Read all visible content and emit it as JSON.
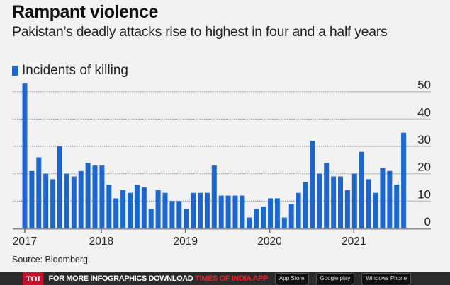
{
  "header": {
    "title": "Rampant violence",
    "subtitle": "Pakistan’s deadly attacks rise to highest in four and a half years"
  },
  "source": "Source: Bloomberg",
  "footer": {
    "logo": "TOI",
    "cta": "FOR MORE  INFOGRAPHICS DOWNLOAD",
    "cta_highlight": "TIMES OF INDIA  APP",
    "badges": [
      "App Store",
      "Google play",
      "Windows Phone"
    ]
  },
  "chart_data": {
    "type": "bar",
    "title": "Rampant violence",
    "legend": [
      "Incidents of killing"
    ],
    "legend_position": "top-left",
    "color": "#1a66d4",
    "x_start": "2017-01",
    "x_end": "2021-07",
    "x_unit": "month",
    "values": [
      53,
      21,
      26,
      20,
      18,
      30,
      20,
      19,
      21,
      24,
      23,
      23,
      16,
      11,
      14,
      13,
      16,
      15,
      7,
      14,
      13,
      10,
      10,
      7,
      13,
      13,
      13,
      23,
      12,
      12,
      12,
      12,
      4,
      7,
      8,
      11,
      11,
      4,
      9,
      13,
      17,
      32,
      20,
      24,
      19,
      19,
      14,
      20,
      28,
      18,
      13,
      22,
      21,
      16,
      35
    ],
    "x_ticks": [
      {
        "label": "2017",
        "index": 0
      },
      {
        "label": "2018",
        "index": 11
      },
      {
        "label": "2019",
        "index": 23
      },
      {
        "label": "2020",
        "index": 35
      },
      {
        "label": "2021",
        "index": 47
      }
    ],
    "y_ticks": [
      0,
      10,
      20,
      30,
      40,
      50
    ],
    "ylim": [
      0,
      55
    ],
    "grid": true,
    "y_axis_position": "right"
  }
}
